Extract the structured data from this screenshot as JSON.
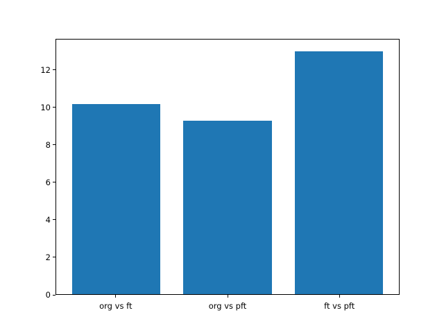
{
  "chart_data": {
    "type": "bar",
    "title": "",
    "xlabel": "",
    "ylabel": "",
    "categories": [
      "org vs ft",
      "org vs pft",
      "ft vs pft"
    ],
    "values": [
      10.2,
      9.3,
      13.0
    ],
    "ylim": [
      0,
      13.65
    ],
    "yticks": [
      0,
      2,
      4,
      6,
      8,
      10,
      12
    ],
    "bar_color": "#1f77b4",
    "axis_color": "#000000",
    "background_color": "#ffffff",
    "grid": false,
    "legend": null
  }
}
